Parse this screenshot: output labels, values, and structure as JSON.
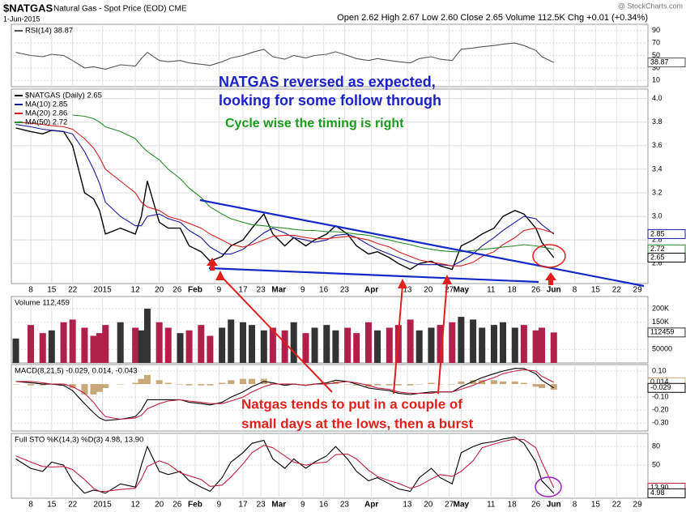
{
  "header": {
    "symbol": "$NATGAS",
    "description": "Natural Gas - Spot Price (EOD) CME",
    "date": "1-Jun-2015",
    "quote": "Open 2.62 High 2.67 Low 2.60 Close 2.65 Volume 112.5K Chg +0.01 (+0.34%)",
    "source": "@ StockCharts.com"
  },
  "annotations": [
    "NATGAS reversed as expected,",
    "looking for some follow through",
    "Cycle wise the timing is right",
    "Natgas tends to put in a couple of",
    "small days at the lows, then a burst"
  ],
  "chart_data": [
    {
      "type": "line",
      "ylim": [
        0,
        100
      ],
      "yticks": [
        90,
        70,
        50,
        30,
        10
      ],
      "grid": true,
      "series": [
        {
          "name": "RSI(14) 38.87",
          "color": "#555555",
          "values": [
            55,
            50,
            48,
            52,
            50,
            42,
            30,
            32,
            30,
            28,
            35,
            33,
            45,
            55,
            42,
            40,
            42,
            38,
            36,
            34,
            40,
            46,
            50,
            55,
            60,
            48,
            44,
            50,
            46,
            50,
            52,
            56,
            50,
            45,
            42,
            45,
            42,
            40,
            38,
            45,
            48,
            44,
            42,
            60,
            62,
            64,
            66,
            68,
            70,
            66,
            58,
            48,
            38.87
          ]
        }
      ],
      "badges": [
        {
          "value": 38.87,
          "color": "#555555"
        }
      ]
    },
    {
      "type": "line",
      "ylim": [
        2.43,
        4.08
      ],
      "xlim": [
        0.5,
        213.5
      ],
      "grid": true,
      "yticks": [
        {
          "value": 4,
          "label": "4.0"
        },
        {
          "value": 3.8,
          "label": "3.8"
        },
        {
          "value": 3.6,
          "label": "3.6"
        },
        {
          "value": 3.4,
          "label": "3.4"
        },
        {
          "value": 3.2,
          "label": "3.2"
        },
        {
          "value": 3,
          "label": "3.0"
        },
        {
          "value": 2.8,
          "label": "2.8"
        },
        {
          "value": 2.6,
          "label": "2.6"
        }
      ],
      "x": [
        2,
        7,
        11,
        14,
        18,
        21,
        25,
        28,
        30,
        32,
        37,
        42,
        44,
        46,
        50,
        53,
        57,
        60,
        64,
        67,
        71,
        74,
        78,
        81,
        85,
        88,
        92,
        95,
        99,
        102,
        106,
        109,
        113,
        116,
        120,
        123,
        127,
        130,
        134,
        137,
        141,
        144,
        148,
        151,
        155,
        158,
        162,
        165,
        169,
        172,
        176,
        178,
        182
      ],
      "xticks": [
        {
          "value": 7,
          "label": "8"
        },
        {
          "value": 14,
          "label": "15"
        },
        {
          "value": 21,
          "label": "22"
        },
        {
          "value": 31,
          "label": "2015"
        },
        {
          "value": 42,
          "label": "12"
        },
        {
          "value": 50,
          "label": "20"
        },
        {
          "value": 56,
          "label": "26"
        },
        {
          "value": 62,
          "label": "Feb"
        },
        {
          "value": 70,
          "label": "9"
        },
        {
          "value": 78,
          "label": "17"
        },
        {
          "value": 84,
          "label": "23"
        },
        {
          "value": 90,
          "label": "Mar"
        },
        {
          "value": 98,
          "label": "9"
        },
        {
          "value": 105,
          "label": "16"
        },
        {
          "value": 112,
          "label": "23"
        },
        {
          "value": 121,
          "label": "Apr"
        },
        {
          "value": 133,
          "label": "13"
        },
        {
          "value": 140,
          "label": "20"
        },
        {
          "value": 147,
          "label": "27"
        },
        {
          "value": 151,
          "label": "May"
        },
        {
          "value": 161,
          "label": "11"
        },
        {
          "value": 168,
          "label": "18"
        },
        {
          "value": 176,
          "label": "26"
        },
        {
          "value": 182,
          "label": "Jun"
        },
        {
          "value": 189,
          "label": "8"
        },
        {
          "value": 196,
          "label": "15"
        },
        {
          "value": 203,
          "label": "22"
        },
        {
          "value": 210,
          "label": "29"
        }
      ],
      "series": [
        {
          "name": "$NATGAS (Daily) 2.65",
          "color": "#000000",
          "values": [
            3.75,
            3.72,
            3.7,
            3.73,
            3.72,
            3.6,
            3.2,
            3.15,
            3.05,
            2.85,
            2.9,
            2.85,
            3.0,
            3.3,
            2.95,
            2.9,
            2.9,
            2.75,
            2.7,
            2.62,
            2.66,
            2.75,
            2.8,
            2.9,
            3.02,
            2.85,
            2.75,
            2.82,
            2.75,
            2.8,
            2.85,
            2.92,
            2.85,
            2.75,
            2.68,
            2.7,
            2.65,
            2.6,
            2.55,
            2.6,
            2.62,
            2.58,
            2.55,
            2.75,
            2.8,
            2.85,
            2.9,
            3.0,
            3.05,
            3.02,
            2.9,
            2.78,
            2.65
          ]
        },
        {
          "name": "MA(10) 2.85",
          "color": "#1a1a9c",
          "values": [
            3.78,
            3.76,
            3.74,
            3.73,
            3.72,
            3.7,
            3.55,
            3.4,
            3.28,
            3.12,
            3.0,
            2.92,
            2.92,
            3.0,
            3.02,
            2.98,
            2.95,
            2.88,
            2.82,
            2.74,
            2.68,
            2.68,
            2.72,
            2.78,
            2.86,
            2.9,
            2.86,
            2.82,
            2.8,
            2.78,
            2.8,
            2.84,
            2.85,
            2.82,
            2.76,
            2.72,
            2.68,
            2.65,
            2.61,
            2.59,
            2.59,
            2.59,
            2.58,
            2.62,
            2.68,
            2.75,
            2.82,
            2.88,
            2.95,
            3.0,
            2.98,
            2.93,
            2.85
          ]
        },
        {
          "name": "MA(20) 2.86",
          "color": "#d42020",
          "values": [
            3.8,
            3.79,
            3.78,
            3.77,
            3.76,
            3.74,
            3.66,
            3.58,
            3.5,
            3.4,
            3.3,
            3.2,
            3.12,
            3.08,
            3.05,
            3.0,
            2.97,
            2.94,
            2.9,
            2.85,
            2.8,
            2.76,
            2.74,
            2.76,
            2.8,
            2.83,
            2.84,
            2.84,
            2.82,
            2.81,
            2.81,
            2.82,
            2.83,
            2.82,
            2.8,
            2.77,
            2.74,
            2.7,
            2.66,
            2.63,
            2.61,
            2.6,
            2.58,
            2.58,
            2.61,
            2.66,
            2.7,
            2.76,
            2.82,
            2.88,
            2.9,
            2.89,
            2.86
          ]
        },
        {
          "name": "MA(50) 2.72",
          "color": "#2a8a2a",
          "values": [
            null,
            null,
            null,
            null,
            null,
            3.86,
            3.85,
            3.83,
            3.8,
            3.76,
            3.72,
            3.66,
            3.6,
            3.55,
            3.48,
            3.4,
            3.32,
            3.24,
            3.16,
            3.08,
            3.02,
            2.98,
            2.95,
            2.93,
            2.92,
            2.91,
            2.9,
            2.89,
            2.88,
            2.88,
            2.87,
            2.87,
            2.86,
            2.85,
            2.84,
            2.82,
            2.8,
            2.78,
            2.76,
            2.74,
            2.72,
            2.71,
            2.7,
            2.7,
            2.71,
            2.72,
            2.73,
            2.74,
            2.75,
            2.76,
            2.75,
            2.74,
            2.72
          ]
        }
      ],
      "badges": [
        {
          "value": 2.85,
          "color": "#1a1a9c"
        },
        {
          "value": 2.72,
          "color": "#2a8a2a"
        },
        {
          "value": 2.65,
          "color": "#000000"
        }
      ]
    },
    {
      "type": "bar",
      "ylim": [
        0,
        245000
      ],
      "grid": true,
      "up_color": "#333333",
      "down_color": "#b0204a",
      "yticks": [
        {
          "value": 200000,
          "label": "200K"
        },
        {
          "value": 150000,
          "label": "150K"
        },
        50000
      ],
      "series": [
        {
          "name": "Volume 112,459",
          "values": [
            90000,
            140000,
            110000,
            120000,
            150000,
            160000,
            130000,
            100000,
            110000,
            140000,
            150000,
            130000,
            120000,
            200000,
            150000,
            130000,
            110000,
            120000,
            140000,
            100000,
            130000,
            160000,
            150000,
            140000,
            120000,
            130000,
            120000,
            150000,
            110000,
            130000,
            140000,
            120000,
            130000,
            110000,
            150000,
            120000,
            130000,
            140000,
            160000,
            120000,
            130000,
            140000,
            150000,
            170000,
            160000,
            130000,
            140000,
            150000,
            130000,
            140000,
            120000,
            130000,
            112459
          ]
        }
      ],
      "badges": [
        {
          "value": 112459,
          "color": "#333333"
        }
      ]
    },
    {
      "type": "line",
      "title": "MACD(8,21,5) -0.029, 0.014, -0.043",
      "ylim": [
        -0.36,
        0.15
      ],
      "grid": true,
      "yticks": [
        {
          "value": 0.1,
          "label": "0.10"
        },
        {
          "value": -0.1,
          "label": "-0.10"
        },
        {
          "value": -0.2,
          "label": "-0.20"
        },
        {
          "value": -0.3,
          "label": "-0.30"
        }
      ],
      "series": [
        {
          "type": "bar",
          "color": "#c8a878",
          "values": [
            0,
            -0.01,
            -0.01,
            0,
            -0.01,
            -0.03,
            -0.08,
            -0.08,
            -0.06,
            -0.03,
            0,
            0.01,
            0.04,
            0.07,
            0.03,
            0.01,
            0,
            -0.01,
            -0.01,
            -0.01,
            0.01,
            0.03,
            0.04,
            0.04,
            0.04,
            0.01,
            -0.01,
            0,
            0,
            0,
            0.01,
            0.02,
            0,
            -0.01,
            -0.02,
            -0.01,
            -0.01,
            -0.01,
            -0.01,
            0,
            0.01,
            0,
            0,
            0.02,
            0.03,
            0.03,
            0.03,
            0.02,
            0.02,
            0.01,
            -0.02,
            -0.03,
            -0.043
          ]
        },
        {
          "color": "#000000",
          "values": [
            0.02,
            0.01,
            0,
            0,
            -0.01,
            -0.05,
            -0.15,
            -0.22,
            -0.26,
            -0.28,
            -0.27,
            -0.25,
            -0.2,
            -0.12,
            -0.12,
            -0.12,
            -0.12,
            -0.14,
            -0.15,
            -0.16,
            -0.14,
            -0.1,
            -0.06,
            -0.02,
            0.02,
            0.01,
            -0.01,
            0,
            -0.01,
            0,
            0.01,
            0.03,
            0.02,
            0,
            -0.03,
            -0.04,
            -0.05,
            -0.07,
            -0.08,
            -0.07,
            -0.06,
            -0.06,
            -0.06,
            -0.02,
            0.02,
            0.05,
            0.08,
            0.1,
            0.12,
            0.12,
            0.08,
            0.03,
            -0.029
          ]
        },
        {
          "color": "#c02040",
          "values": [
            0.02,
            0.02,
            0.01,
            0,
            0,
            -0.02,
            -0.07,
            -0.14,
            -0.2,
            -0.25,
            -0.27,
            -0.26,
            -0.24,
            -0.19,
            -0.15,
            -0.13,
            -0.12,
            -0.13,
            -0.14,
            -0.15,
            -0.15,
            -0.13,
            -0.1,
            -0.06,
            -0.02,
            0,
            0,
            0,
            -0.01,
            0,
            0,
            0.01,
            0.02,
            0.01,
            -0.01,
            -0.03,
            -0.04,
            -0.06,
            -0.07,
            -0.07,
            -0.07,
            -0.06,
            -0.06,
            -0.04,
            -0.01,
            0.02,
            0.05,
            0.08,
            0.1,
            0.11,
            0.1,
            0.06,
            0.014
          ]
        }
      ],
      "badges": [
        {
          "value": 0.014,
          "color": "#c8a878"
        },
        {
          "value": -0.029,
          "color": "#000000"
        }
      ]
    },
    {
      "type": "line",
      "title": "Full STO %K(14,3) %D(3) 4.98, 13.90",
      "ylim": [
        -3,
        101
      ],
      "xlim": [
        0.5,
        213.5
      ],
      "grid": true,
      "yticks": [
        80,
        50
      ],
      "xticks": [
        {
          "value": 7,
          "label": "8"
        },
        {
          "value": 14,
          "label": "15"
        },
        {
          "value": 21,
          "label": "22"
        },
        {
          "value": 31,
          "label": "2015"
        },
        {
          "value": 42,
          "label": "12"
        },
        {
          "value": 50,
          "label": "20"
        },
        {
          "value": 56,
          "label": "26"
        },
        {
          "value": 62,
          "label": "Feb"
        },
        {
          "value": 70,
          "label": "9"
        },
        {
          "value": 78,
          "label": "17"
        },
        {
          "value": 84,
          "label": "23"
        },
        {
          "value": 90,
          "label": "Mar"
        },
        {
          "value": 98,
          "label": "9"
        },
        {
          "value": 105,
          "label": "16"
        },
        {
          "value": 112,
          "label": "23"
        },
        {
          "value": 121,
          "label": "Apr"
        },
        {
          "value": 133,
          "label": "13"
        },
        {
          "value": 140,
          "label": "20"
        },
        {
          "value": 147,
          "label": "27"
        },
        {
          "value": 151,
          "label": "May"
        },
        {
          "value": 161,
          "label": "11"
        },
        {
          "value": 168,
          "label": "18"
        },
        {
          "value": 176,
          "label": "26"
        },
        {
          "value": 182,
          "label": "Jun"
        },
        {
          "value": 189,
          "label": "8"
        },
        {
          "value": 196,
          "label": "15"
        },
        {
          "value": 203,
          "label": "22"
        },
        {
          "value": 210,
          "label": "29"
        }
      ],
      "series": [
        {
          "color": "#000000",
          "values": [
            60,
            45,
            40,
            55,
            50,
            25,
            5,
            10,
            8,
            5,
            20,
            15,
            50,
            80,
            40,
            35,
            40,
            25,
            15,
            8,
            30,
            55,
            70,
            85,
            90,
            60,
            45,
            60,
            45,
            55,
            65,
            80,
            60,
            40,
            25,
            30,
            20,
            12,
            8,
            30,
            45,
            30,
            20,
            70,
            80,
            85,
            88,
            92,
            95,
            85,
            55,
            25,
            4.98
          ]
        },
        {
          "color": "#c02040",
          "values": [
            65,
            55,
            48,
            47,
            48,
            43,
            27,
            13,
            8,
            8,
            11,
            13,
            28,
            48,
            57,
            52,
            38,
            33,
            27,
            16,
            18,
            31,
            52,
            70,
            82,
            78,
            65,
            55,
            50,
            53,
            55,
            67,
            68,
            60,
            42,
            32,
            25,
            21,
            13,
            17,
            28,
            35,
            32,
            40,
            57,
            78,
            84,
            88,
            92,
            91,
            78,
            55,
            13.9
          ]
        }
      ],
      "badges": [
        {
          "value": 13.9,
          "label": "13.90",
          "color": "#c02040"
        },
        {
          "value": 4.98,
          "color": "#000000"
        }
      ]
    }
  ]
}
